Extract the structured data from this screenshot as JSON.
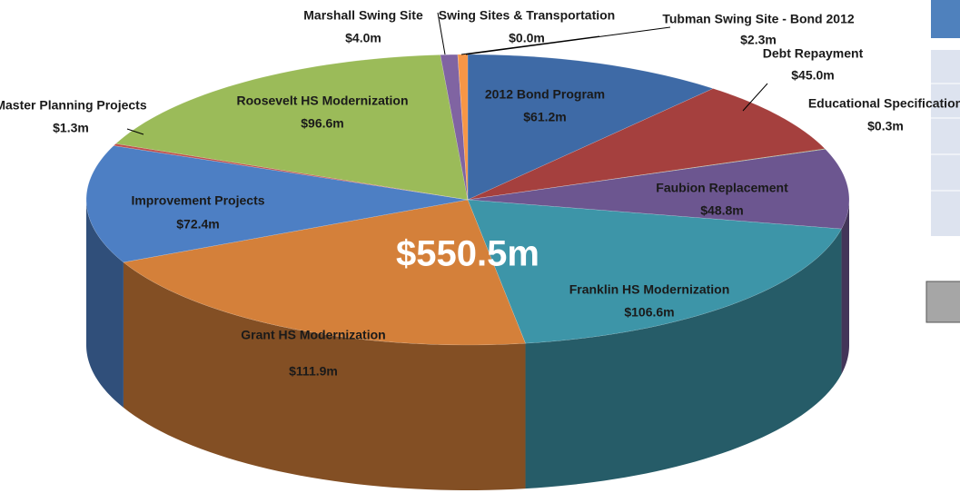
{
  "chart_data": {
    "type": "pie3d",
    "total_label": "$550.5m",
    "categories": [
      "2012 Bond Program",
      "Debt Repayment",
      "Educational Specification",
      "Faubion Replacement",
      "Franklin HS Modernization",
      "Grant HS Modernization",
      "Improvement Projects",
      "Master Planning Projects",
      "Roosevelt HS Modernization",
      "Marshall Swing Site",
      "Swing Sites & Transportation",
      "Tubman Swing Site - Bond 2012"
    ],
    "values": [
      61.2,
      45.0,
      0.3,
      48.8,
      106.6,
      111.9,
      72.4,
      1.3,
      96.6,
      4.0,
      0.0,
      2.3
    ],
    "value_labels": [
      "$61.2m",
      "$45.0m",
      "$0.3m",
      "$48.8m",
      "$106.6m",
      "$111.9m",
      "$72.4m",
      "$1.3m",
      "$96.6m",
      "$4.0m",
      "$0.0m",
      "$2.3m"
    ],
    "colors": [
      "#3e6aa6",
      "#a5403e",
      "#7fa446",
      "#6c5690",
      "#3d95a8",
      "#d4803a",
      "#4d7fc4",
      "#c0504d",
      "#9bbb59",
      "#8064a2",
      "#4bacc6",
      "#f79646"
    ]
  }
}
